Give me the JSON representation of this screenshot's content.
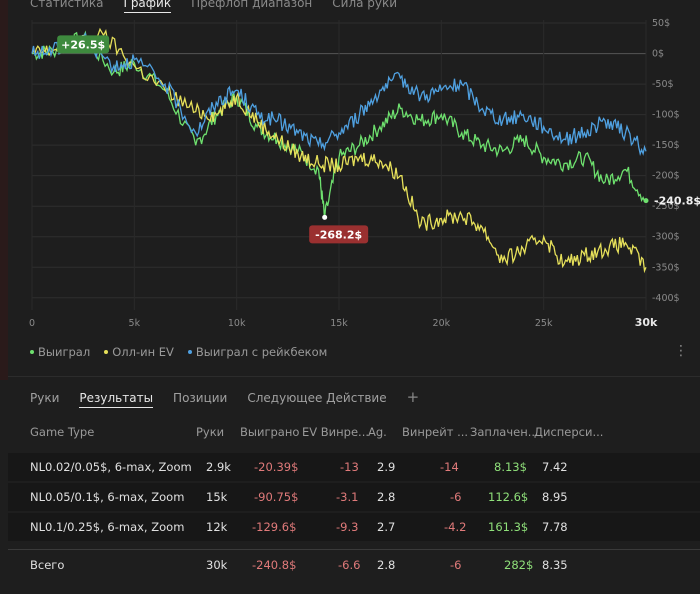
{
  "top_tabs": [
    {
      "label": "Статистика",
      "active": false
    },
    {
      "label": "График",
      "active": true
    },
    {
      "label": "Префлоп диапазон",
      "active": false
    },
    {
      "label": "Сила руки",
      "active": false
    }
  ],
  "chart_data": {
    "type": "line",
    "x_ticks": [
      "0",
      "5k",
      "10k",
      "15k",
      "20k",
      "25k",
      "30k"
    ],
    "y_ticks": [
      "50$",
      "0$",
      "-50$",
      "-100$",
      "-150$",
      "-200$",
      "-250$",
      "-300$",
      "-350$",
      "-400$"
    ],
    "xlim": [
      0,
      30000
    ],
    "ylim": [
      -420,
      55
    ],
    "series": [
      {
        "name": "Выиграл",
        "color": "#6ee06e",
        "x": [
          0,
          1000,
          2500,
          4000,
          5000,
          6500,
          8000,
          9000,
          10000,
          11000,
          12000,
          13000,
          14000,
          14300,
          15000,
          16000,
          17000,
          18000,
          19000,
          20000,
          21000,
          22000,
          23000,
          24000,
          25000,
          26000,
          27000,
          28000,
          29000,
          30000
        ],
        "y": [
          0,
          5,
          26.5,
          -30,
          -15,
          -60,
          -150,
          -100,
          -70,
          -120,
          -140,
          -160,
          -190,
          -268.2,
          -170,
          -150,
          -120,
          -90,
          -110,
          -100,
          -130,
          -150,
          -160,
          -140,
          -170,
          -180,
          -170,
          -210,
          -190,
          -240.8
        ]
      },
      {
        "name": "Олл-ин EV",
        "color": "#e6e05a",
        "x": [
          0,
          1000,
          3500,
          5000,
          6500,
          8000,
          9000,
          10000,
          11000,
          12000,
          13000,
          14000,
          15000,
          16000,
          17000,
          18000,
          19000,
          20000,
          21000,
          22000,
          23000,
          24000,
          25000,
          26000,
          27000,
          28000,
          29000,
          30000
        ],
        "y": [
          0,
          5,
          30,
          -20,
          -60,
          -95,
          -100,
          -70,
          -110,
          -140,
          -165,
          -180,
          -185,
          -170,
          -175,
          -200,
          -280,
          -270,
          -265,
          -285,
          -340,
          -320,
          -300,
          -345,
          -330,
          -320,
          -310,
          -350
        ]
      },
      {
        "name": "Выиграл с рейкбеком",
        "color": "#4fa0e0",
        "x": [
          0,
          1000,
          2500,
          4000,
          5000,
          6500,
          8000,
          9000,
          10000,
          11000,
          12000,
          13000,
          14000,
          15000,
          16000,
          17000,
          18000,
          19000,
          20000,
          21000,
          22000,
          23000,
          24000,
          25000,
          26000,
          27000,
          28000,
          29000,
          30000
        ],
        "y": [
          0,
          5,
          26.5,
          -20,
          -10,
          -50,
          -130,
          -80,
          -60,
          -100,
          -110,
          -130,
          -150,
          -130,
          -100,
          -60,
          -40,
          -70,
          -60,
          -50,
          -90,
          -110,
          -100,
          -120,
          -140,
          -130,
          -110,
          -130,
          -160
        ]
      }
    ],
    "annotations": [
      {
        "text": "+26.5$",
        "x": 2500,
        "y": 26.5,
        "style": "pos"
      },
      {
        "text": "-268.2$",
        "x": 14300,
        "y": -268.2,
        "style": "neg"
      },
      {
        "text": "-240.8$",
        "x": 30000,
        "y": -240.8,
        "style": "plain"
      }
    ],
    "grid": true,
    "legend": "bottom-left"
  },
  "legend": [
    {
      "label": "Выиграл",
      "color": "#6ee06e"
    },
    {
      "label": "Олл-ин EV",
      "color": "#e6e05a"
    },
    {
      "label": "Выиграл с рейкбеком",
      "color": "#4fa0e0"
    }
  ],
  "sub_tabs": [
    {
      "label": "Руки",
      "active": false
    },
    {
      "label": "Результаты",
      "active": true
    },
    {
      "label": "Позиции",
      "active": false
    },
    {
      "label": "Следующее Действие",
      "active": false
    }
  ],
  "plus_symbol": "+",
  "table": {
    "headers": [
      "Game Type",
      "Руки",
      "Выиграно",
      "EV Винре...",
      "Ag.",
      "Винрейт ...",
      "Заплачен...",
      "Дисперси..."
    ],
    "rows": [
      [
        "NL0.02/0.05$, 6-max, Zoom",
        "2.9k",
        "-20.39$",
        "-13",
        "2.9",
        "-14",
        "8.13$",
        "7.42"
      ],
      [
        "NL0.05/0.1$, 6-max, Zoom",
        "15k",
        "-90.75$",
        "-3.1",
        "2.8",
        "-6",
        "112.6$",
        "8.95"
      ],
      [
        "NL0.1/0.25$, 6-max, Zoom",
        "12k",
        "-129.6$",
        "-9.3",
        "2.7",
        "-4.2",
        "161.3$",
        "7.78"
      ]
    ],
    "total": [
      "Всего",
      "30k",
      "-240.8$",
      "-6.6",
      "2.8",
      "-6",
      "282$",
      "8.35"
    ]
  }
}
